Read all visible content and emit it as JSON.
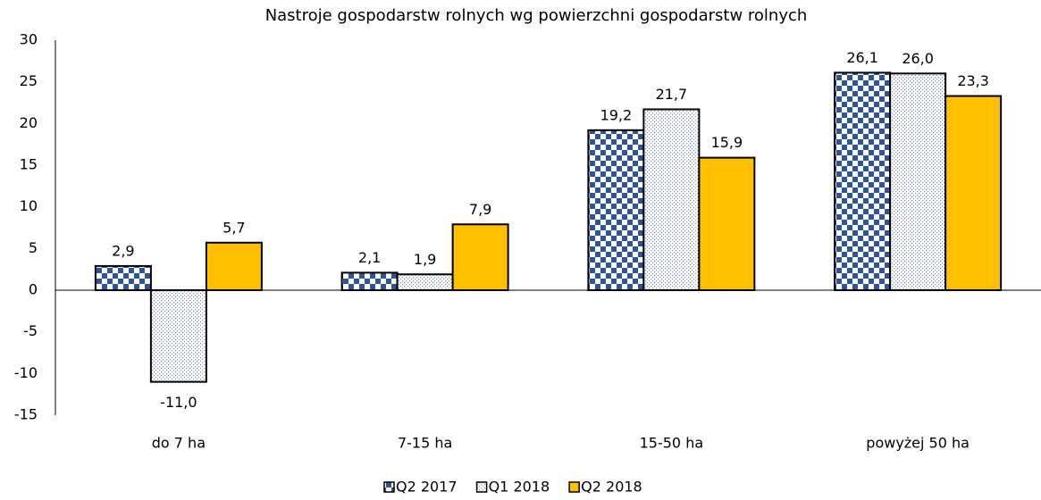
{
  "chart_data": {
    "type": "bar",
    "title": "Nastroje gospodarstw rolnych wg powierzchni gospodarstw rolnych",
    "categories": [
      "do 7 ha",
      "7-15 ha",
      "15-50 ha",
      "powyżej 50 ha"
    ],
    "series": [
      {
        "name": "Q2 2017",
        "color": "#2f5597",
        "pattern": "checker",
        "values": [
          2.9,
          2.1,
          19.2,
          26.1
        ],
        "value_labels": [
          "2,9",
          "2,1",
          "19,2",
          "26,1"
        ]
      },
      {
        "name": "Q1 2018",
        "color": "#7f93b5",
        "pattern": "dots",
        "values": [
          -11.0,
          1.9,
          21.7,
          26.0
        ],
        "value_labels": [
          "-11,0",
          "1,9",
          "21,7",
          "26,0"
        ]
      },
      {
        "name": "Q2 2018",
        "color": "#ffc000",
        "pattern": "solid",
        "values": [
          5.7,
          7.9,
          15.9,
          23.3
        ],
        "value_labels": [
          "5,7",
          "7,9",
          "15,9",
          "23,3"
        ]
      }
    ],
    "ylim": [
      -15,
      30
    ],
    "yticks": [
      -15,
      -10,
      -5,
      0,
      5,
      10,
      15,
      20,
      25,
      30
    ],
    "grid": false,
    "legend": "bottom"
  }
}
